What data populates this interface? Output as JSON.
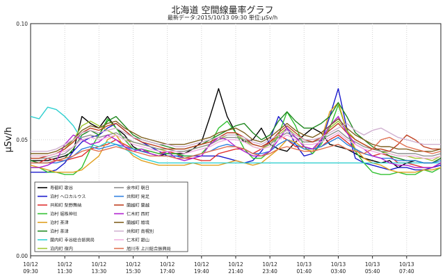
{
  "chart_data": {
    "type": "line",
    "title": "北海道 空間線量率グラフ",
    "subtitle": "最新データ:2015/10/13 09:30 単位:μSv/h",
    "ylabel": "μSv/h",
    "ylim": [
      0.0,
      0.1
    ],
    "yticks": [
      "0.00",
      "0.05",
      "0.10"
    ],
    "xticks": [
      [
        "10/12",
        "09:30"
      ],
      [
        "10/12",
        "11:30"
      ],
      [
        "10/12",
        "13:30"
      ],
      [
        "10/12",
        "15:30"
      ],
      [
        "10/12",
        "17:40"
      ],
      [
        "10/12",
        "19:40"
      ],
      [
        "10/12",
        "21:40"
      ],
      [
        "10/12",
        "23:40"
      ],
      [
        "10/13",
        "01:40"
      ],
      [
        "10/13",
        "03:40"
      ],
      [
        "10/13",
        "05:40"
      ],
      [
        "10/13",
        "07:40"
      ]
    ],
    "x_count": 49,
    "grid": true,
    "legend_position": "bottom-left",
    "series": [
      {
        "name": "寿都町 歌谷",
        "color": "#000000",
        "values": [
          0.041,
          0.041,
          0.041,
          0.042,
          0.043,
          0.045,
          0.06,
          0.057,
          0.055,
          0.06,
          0.055,
          0.052,
          0.047,
          0.045,
          0.044,
          0.043,
          0.044,
          0.044,
          0.044,
          0.046,
          0.049,
          0.06,
          0.072,
          0.06,
          0.053,
          0.049,
          0.05,
          0.055,
          0.048,
          0.046,
          0.045,
          0.049,
          0.052,
          0.055,
          0.053,
          0.048,
          0.047,
          0.046,
          0.044,
          0.042,
          0.041,
          0.04,
          0.041,
          0.038,
          0.04,
          0.041,
          0.04,
          0.04,
          0.042
        ]
      },
      {
        "name": "泊村 ヘロカルウス",
        "color": "#1a1acc",
        "values": [
          0.036,
          0.036,
          0.036,
          0.037,
          0.04,
          0.045,
          0.049,
          0.051,
          0.052,
          0.055,
          0.057,
          0.054,
          0.051,
          0.049,
          0.047,
          0.045,
          0.043,
          0.043,
          0.043,
          0.043,
          0.043,
          0.043,
          0.043,
          0.042,
          0.041,
          0.04,
          0.041,
          0.045,
          0.05,
          0.06,
          0.055,
          0.048,
          0.043,
          0.044,
          0.049,
          0.06,
          0.072,
          0.055,
          0.042,
          0.04,
          0.039,
          0.038,
          0.037,
          0.038,
          0.038,
          0.037,
          0.037,
          0.038,
          0.039
        ]
      },
      {
        "name": "共和町 梨野舞納",
        "color": "#e03030",
        "values": [
          0.04,
          0.04,
          0.042,
          0.041,
          0.041,
          0.042,
          0.043,
          0.046,
          0.047,
          0.048,
          0.05,
          0.048,
          0.046,
          0.045,
          0.045,
          0.044,
          0.045,
          0.044,
          0.042,
          0.042,
          0.041,
          0.041,
          0.044,
          0.045,
          0.046,
          0.046,
          0.044,
          0.046,
          0.049,
          0.052,
          0.05,
          0.047,
          0.047,
          0.046,
          0.047,
          0.05,
          0.052,
          0.049,
          0.046,
          0.044,
          0.043,
          0.044,
          0.043,
          0.04,
          0.04,
          0.039,
          0.038,
          0.038,
          0.04
        ]
      },
      {
        "name": "泊村 堀株神社",
        "color": "#30c030",
        "values": [
          0.038,
          0.038,
          0.036,
          0.036,
          0.035,
          0.035,
          0.038,
          0.046,
          0.052,
          0.059,
          0.055,
          0.05,
          0.046,
          0.046,
          0.045,
          0.044,
          0.044,
          0.044,
          0.043,
          0.043,
          0.044,
          0.048,
          0.055,
          0.058,
          0.053,
          0.046,
          0.042,
          0.042,
          0.045,
          0.052,
          0.062,
          0.056,
          0.047,
          0.044,
          0.048,
          0.055,
          0.065,
          0.054,
          0.045,
          0.04,
          0.036,
          0.035,
          0.035,
          0.036,
          0.035,
          0.035,
          0.037,
          0.036,
          0.038
        ]
      },
      {
        "name": "泊村 茶津",
        "color": "#e0a020",
        "values": [
          0.039,
          0.038,
          0.037,
          0.036,
          0.036,
          0.036,
          0.037,
          0.04,
          0.043,
          0.05,
          0.052,
          0.047,
          0.043,
          0.041,
          0.04,
          0.039,
          0.039,
          0.039,
          0.039,
          0.04,
          0.039,
          0.039,
          0.039,
          0.04,
          0.041,
          0.04,
          0.039,
          0.04,
          0.043,
          0.046,
          0.05,
          0.049,
          0.046,
          0.045,
          0.05,
          0.062,
          0.066,
          0.054,
          0.046,
          0.042,
          0.04,
          0.039,
          0.037,
          0.036,
          0.036,
          0.036,
          0.037,
          0.037,
          0.038
        ]
      },
      {
        "name": "泊村 茶津",
        "color": "#208820",
        "values": [
          0.041,
          0.04,
          0.04,
          0.041,
          0.042,
          0.046,
          0.052,
          0.054,
          0.052,
          0.058,
          0.06,
          0.056,
          0.052,
          0.05,
          0.049,
          0.048,
          0.047,
          0.046,
          0.046,
          0.047,
          0.048,
          0.05,
          0.052,
          0.054,
          0.056,
          0.057,
          0.053,
          0.05,
          0.052,
          0.058,
          0.062,
          0.058,
          0.055,
          0.055,
          0.057,
          0.06,
          0.066,
          0.06,
          0.053,
          0.05,
          0.047,
          0.045,
          0.043,
          0.042,
          0.041,
          0.041,
          0.04,
          0.04,
          0.042
        ]
      },
      {
        "name": "蘭内町 幸谷総合振興局",
        "color": "#30d0d0",
        "values": [
          0.06,
          0.059,
          0.064,
          0.063,
          0.06,
          0.056,
          0.05,
          0.048,
          0.047,
          0.049,
          0.048,
          0.046,
          0.044,
          0.042,
          0.041,
          0.04,
          0.04,
          0.04,
          0.04,
          0.04,
          0.04,
          0.04,
          0.04,
          0.04,
          0.04,
          0.04,
          0.04,
          0.04,
          0.04,
          0.04,
          0.04,
          0.04,
          0.04,
          0.04,
          0.04,
          0.04,
          0.04,
          0.04,
          0.04,
          0.04,
          0.04,
          0.04,
          0.04,
          0.04,
          0.04,
          0.04,
          0.04,
          0.04,
          0.04
        ]
      },
      {
        "name": "泊内町 宿内",
        "color": "#a0c830",
        "values": [
          0.043,
          0.043,
          0.043,
          0.044,
          0.046,
          0.05,
          0.056,
          0.058,
          0.056,
          0.054,
          0.052,
          0.05,
          0.049,
          0.048,
          0.047,
          0.046,
          0.045,
          0.045,
          0.045,
          0.046,
          0.047,
          0.048,
          0.05,
          0.052,
          0.052,
          0.05,
          0.047,
          0.046,
          0.048,
          0.052,
          0.055,
          0.052,
          0.05,
          0.049,
          0.051,
          0.055,
          0.058,
          0.054,
          0.05,
          0.048,
          0.046,
          0.045,
          0.044,
          0.043,
          0.043,
          0.042,
          0.042,
          0.041,
          0.043
        ]
      },
      {
        "name": "余市町 朝日",
        "color": "#909090",
        "values": [
          0.042,
          0.042,
          0.042,
          0.043,
          0.044,
          0.047,
          0.051,
          0.052,
          0.051,
          0.052,
          0.053,
          0.051,
          0.049,
          0.048,
          0.047,
          0.046,
          0.046,
          0.045,
          0.045,
          0.046,
          0.047,
          0.048,
          0.05,
          0.051,
          0.051,
          0.05,
          0.048,
          0.047,
          0.048,
          0.051,
          0.053,
          0.051,
          0.049,
          0.049,
          0.05,
          0.052,
          0.054,
          0.051,
          0.049,
          0.047,
          0.046,
          0.045,
          0.045,
          0.044,
          0.044,
          0.044,
          0.043,
          0.043,
          0.044
        ]
      },
      {
        "name": "共和町 発足",
        "color": "#3080e0",
        "values": [
          0.04,
          0.04,
          0.04,
          0.04,
          0.041,
          0.043,
          0.046,
          0.047,
          0.046,
          0.047,
          0.048,
          0.047,
          0.046,
          0.045,
          0.044,
          0.043,
          0.043,
          0.043,
          0.042,
          0.043,
          0.044,
          0.045,
          0.047,
          0.048,
          0.047,
          0.046,
          0.044,
          0.044,
          0.045,
          0.048,
          0.05,
          0.048,
          0.046,
          0.046,
          0.047,
          0.049,
          0.051,
          0.048,
          0.046,
          0.044,
          0.043,
          0.042,
          0.042,
          0.041,
          0.041,
          0.041,
          0.04,
          0.04,
          0.041
        ]
      },
      {
        "name": "蘭越町 蘭越",
        "color": "#c04020",
        "values": [
          0.042,
          0.042,
          0.043,
          0.044,
          0.046,
          0.049,
          0.053,
          0.055,
          0.054,
          0.056,
          0.057,
          0.054,
          0.051,
          0.049,
          0.048,
          0.047,
          0.046,
          0.046,
          0.046,
          0.047,
          0.048,
          0.049,
          0.051,
          0.053,
          0.053,
          0.051,
          0.048,
          0.047,
          0.049,
          0.053,
          0.056,
          0.053,
          0.05,
          0.049,
          0.051,
          0.054,
          0.057,
          0.053,
          0.05,
          0.048,
          0.046,
          0.046,
          0.045,
          0.048,
          0.052,
          0.05,
          0.047,
          0.046,
          0.046
        ]
      },
      {
        "name": "仁木町 西町",
        "color": "#b020d0",
        "values": [
          0.038,
          0.038,
          0.039,
          0.041,
          0.048,
          0.052,
          0.05,
          0.048,
          0.049,
          0.052,
          0.05,
          0.047,
          0.045,
          0.046,
          0.044,
          0.043,
          0.045,
          0.042,
          0.041,
          0.042,
          0.043,
          0.048,
          0.051,
          0.05,
          0.047,
          0.045,
          0.043,
          0.043,
          0.045,
          0.05,
          0.055,
          0.051,
          0.047,
          0.046,
          0.05,
          0.056,
          0.06,
          0.053,
          0.048,
          0.046,
          0.043,
          0.042,
          0.04,
          0.039,
          0.039,
          0.038,
          0.038,
          0.038,
          0.04
        ]
      },
      {
        "name": "蘭越町 雄境",
        "color": "#806020",
        "values": [
          0.044,
          0.044,
          0.044,
          0.045,
          0.047,
          0.05,
          0.054,
          0.056,
          0.055,
          0.057,
          0.058,
          0.055,
          0.053,
          0.051,
          0.05,
          0.049,
          0.048,
          0.048,
          0.048,
          0.049,
          0.05,
          0.051,
          0.053,
          0.054,
          0.055,
          0.053,
          0.05,
          0.049,
          0.051,
          0.054,
          0.057,
          0.054,
          0.052,
          0.051,
          0.053,
          0.056,
          0.059,
          0.055,
          0.052,
          0.05,
          0.048,
          0.047,
          0.047,
          0.046,
          0.046,
          0.045,
          0.045,
          0.045,
          0.046
        ]
      },
      {
        "name": "共和町 南幌別",
        "color": "#d0b0d0",
        "values": [
          0.045,
          0.045,
          0.045,
          0.046,
          0.048,
          0.05,
          0.053,
          0.054,
          0.053,
          0.054,
          0.055,
          0.053,
          0.051,
          0.05,
          0.049,
          0.048,
          0.048,
          0.047,
          0.047,
          0.048,
          0.049,
          0.05,
          0.051,
          0.052,
          0.052,
          0.051,
          0.049,
          0.048,
          0.05,
          0.052,
          0.054,
          0.052,
          0.05,
          0.05,
          0.051,
          0.053,
          0.055,
          0.057,
          0.054,
          0.052,
          0.054,
          0.055,
          0.053,
          0.051,
          0.05,
          0.049,
          0.048,
          0.048,
          0.048
        ]
      },
      {
        "name": "仁木町 銀山",
        "color": "#f0b0e0",
        "values": [
          0.043,
          0.043,
          0.043,
          0.044,
          0.045,
          0.047,
          0.05,
          0.051,
          0.05,
          0.051,
          0.052,
          0.05,
          0.048,
          0.047,
          0.046,
          0.045,
          0.045,
          0.045,
          0.044,
          0.045,
          0.046,
          0.047,
          0.049,
          0.05,
          0.05,
          0.049,
          0.047,
          0.046,
          0.047,
          0.05,
          0.052,
          0.05,
          0.048,
          0.048,
          0.049,
          0.051,
          0.053,
          0.05,
          0.048,
          0.046,
          0.045,
          0.044,
          0.044,
          0.043,
          0.043,
          0.043,
          0.042,
          0.042,
          0.043
        ]
      },
      {
        "name": "旭川市 上川総合振興局",
        "color": "#e07050",
        "values": [
          0.04,
          0.04,
          0.04,
          0.041,
          0.042,
          0.043,
          0.045,
          0.046,
          0.045,
          0.046,
          0.047,
          0.046,
          0.045,
          0.044,
          0.043,
          0.043,
          0.043,
          0.042,
          0.042,
          0.043,
          0.044,
          0.045,
          0.046,
          0.047,
          0.047,
          0.046,
          0.044,
          0.043,
          0.044,
          0.046,
          0.047,
          0.046,
          0.045,
          0.045,
          0.046,
          0.047,
          0.048,
          0.046,
          0.045,
          0.044,
          0.046,
          0.05,
          0.051,
          0.049,
          0.047,
          0.046,
          0.045,
          0.044,
          0.045
        ]
      }
    ]
  }
}
